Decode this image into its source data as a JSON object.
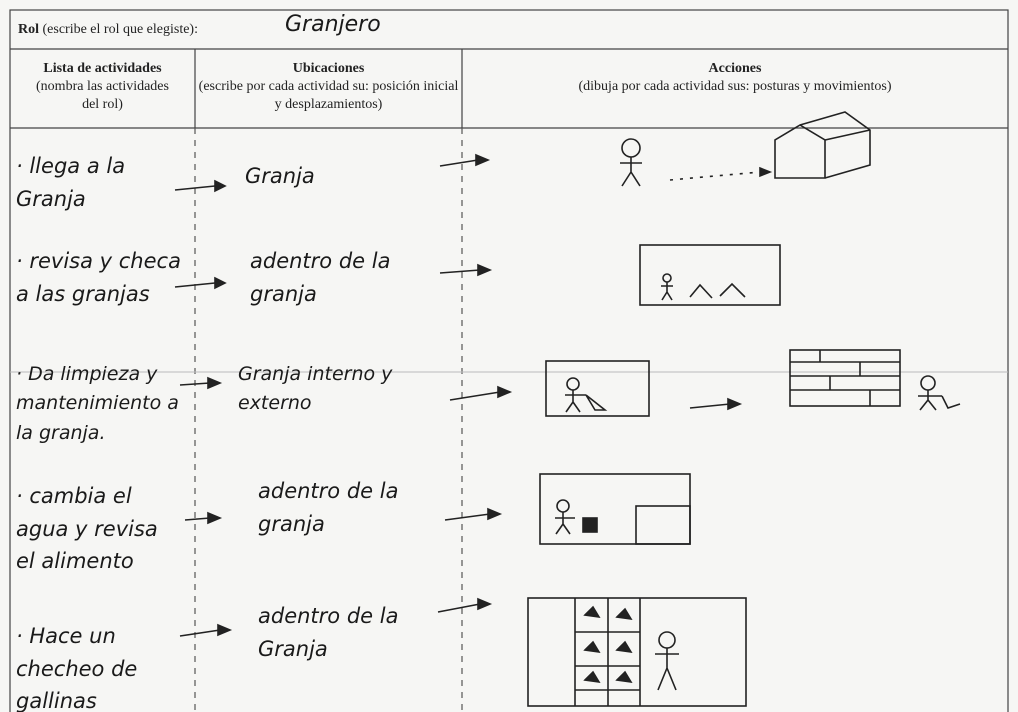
{
  "header": {
    "role_label": "Rol",
    "role_hint": "(escribe el rol que elegiste):",
    "role_value": "Granjero"
  },
  "table": {
    "columns": [
      {
        "title": "Lista de actividades",
        "subtitle": "(nombra las actividades del rol)"
      },
      {
        "title": "Ubicaciones",
        "subtitle": "(escribe por cada actividad su: posición inicial y desplazamientos)"
      },
      {
        "title": "Acciones",
        "subtitle": "(dibuja por cada actividad sus: posturas y movimientos)"
      }
    ],
    "rows": [
      {
        "activity": "· llega a la Granja",
        "location": "Granja"
      },
      {
        "activity": "· revisa y checa a las granjas",
        "location": "adentro de la granja"
      },
      {
        "activity": "· Da limpieza y mantenimiento a la granja.",
        "location": "Granja interno y externo"
      },
      {
        "activity": "· cambia el agua y revisa el alimento",
        "location": "adentro de la granja"
      },
      {
        "activity": "· Hace un checheo de gallinas",
        "location": "adentro de la Granja"
      }
    ]
  }
}
